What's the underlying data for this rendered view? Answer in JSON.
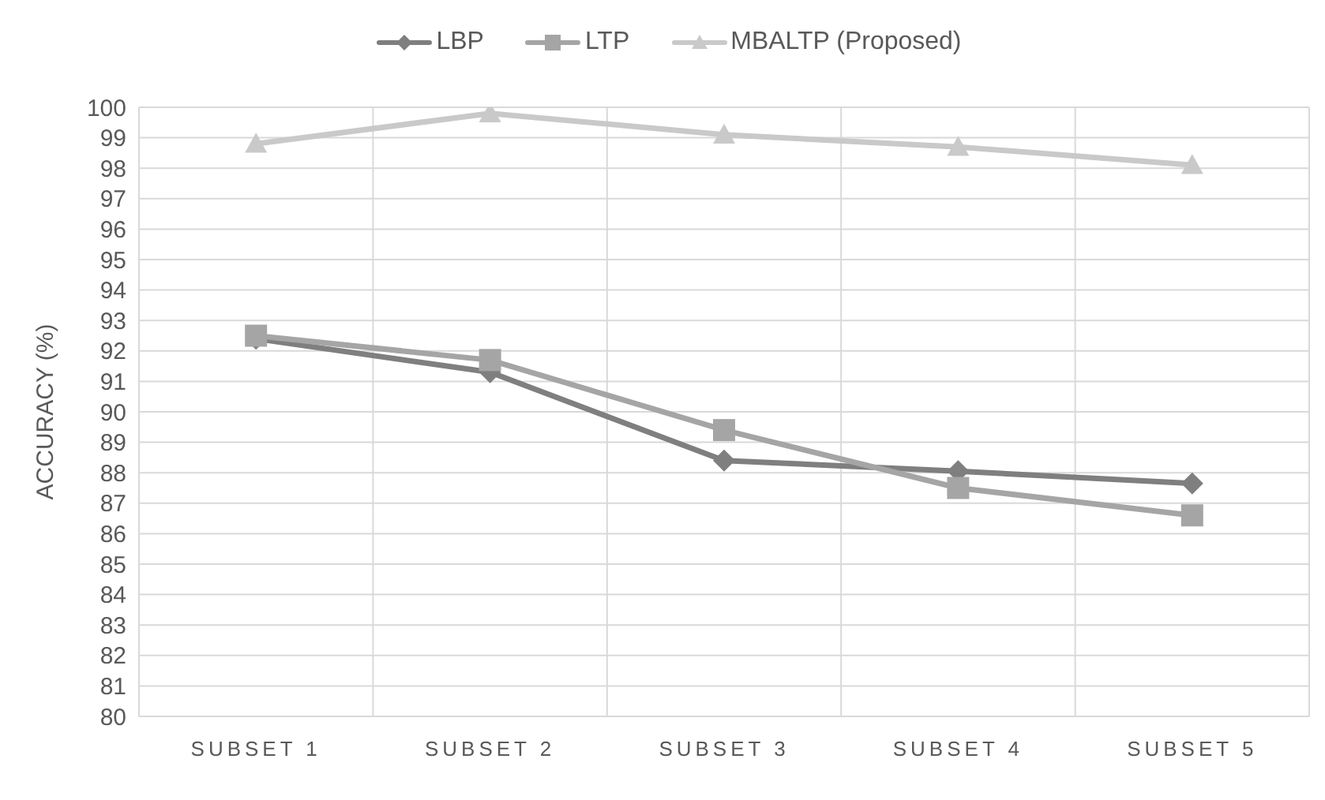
{
  "chart_data": {
    "type": "line",
    "ylabel": "ACCURACY (%)",
    "categories": [
      "SUBSET 1",
      "SUBSET 2",
      "SUBSET 3",
      "SUBSET 4",
      "SUBSET 5"
    ],
    "series": [
      {
        "name": "LBP",
        "color": "#7f7f7f",
        "marker": "diamond",
        "values": [
          92.4,
          91.3,
          88.4,
          88.05,
          87.65
        ]
      },
      {
        "name": "LTP",
        "color": "#a5a5a5",
        "marker": "square",
        "values": [
          92.5,
          91.7,
          89.4,
          87.5,
          86.6
        ]
      },
      {
        "name": "MBALTP (Proposed)",
        "color": "#c9c9c9",
        "marker": "triangle",
        "values": [
          98.8,
          99.8,
          99.1,
          98.7,
          98.1
        ]
      }
    ],
    "ylim": [
      80,
      100
    ],
    "yticks": [
      80,
      81,
      82,
      83,
      84,
      85,
      86,
      87,
      88,
      89,
      90,
      91,
      92,
      93,
      94,
      95,
      96,
      97,
      98,
      99,
      100
    ],
    "grid": true,
    "legend": "top",
    "line_style": "solid"
  }
}
